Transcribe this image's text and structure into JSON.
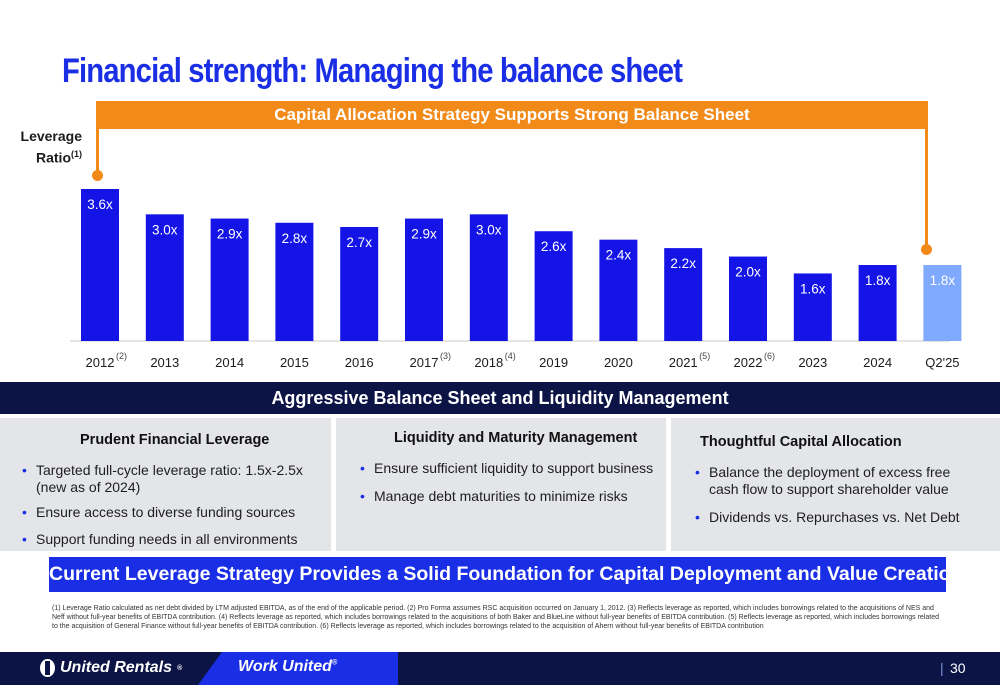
{
  "title": "Financial strength: Managing the balance sheet",
  "capital_banner": "Capital Allocation Strategy Supports Strong Balance Sheet",
  "leverage_label": {
    "line1": "Leverage",
    "line2": "Ratio",
    "sup": "(1)"
  },
  "chart_data": {
    "type": "bar",
    "categories": [
      "2012",
      "2013",
      "2014",
      "2015",
      "2016",
      "2017",
      "2018",
      "2019",
      "2020",
      "2021",
      "2022",
      "2023",
      "2024",
      "Q2'25"
    ],
    "category_footnotes": [
      "(2)",
      "",
      "",
      "",
      "",
      "(3)",
      "(4)",
      "",
      "",
      "(5)",
      "(6)",
      "",
      "",
      ""
    ],
    "values": [
      3.6,
      3.0,
      2.9,
      2.8,
      2.7,
      2.9,
      3.0,
      2.6,
      2.4,
      2.2,
      2.0,
      1.6,
      1.8,
      1.8
    ],
    "value_labels": [
      "3.6x",
      "3.0x",
      "2.9x",
      "2.8x",
      "2.7x",
      "2.9x",
      "3.0x",
      "2.6x",
      "2.4x",
      "2.2x",
      "2.0x",
      "1.6x",
      "1.8x",
      "1.8x"
    ],
    "highlight_index": 13,
    "ylim": [
      0,
      3.6
    ],
    "grid": false,
    "colors": {
      "bar": "#1414e6",
      "highlight": "#7faaff",
      "label_in_bar": "#ffffff"
    }
  },
  "aggressive_banner": "Aggressive Balance Sheet and Liquidity Management",
  "panels": [
    {
      "heading": "Prudent Financial Leverage",
      "bullets": [
        "Targeted full-cycle leverage ratio: 1.5x-2.5x (new as of 2024)",
        "Ensure access to diverse funding sources",
        "Support funding needs in all environments"
      ]
    },
    {
      "heading": "Liquidity and Maturity Management",
      "bullets": [
        "Ensure sufficient liquidity to support business",
        "Manage debt maturities to minimize risks"
      ]
    },
    {
      "heading": "Thoughtful Capital Allocation",
      "bullets": [
        "Balance the deployment of excess free cash flow to support shareholder value",
        "Dividends vs. Repurchases vs. Net Debt"
      ]
    }
  ],
  "strategy_banner": "Current Leverage Strategy Provides a Solid Foundation for Capital Deployment and Value Creation",
  "footnotes": "(1) Leverage Ratio calculated as net debt divided by LTM adjusted EBITDA, as of the end of the applicable period. (2) Pro Forma assumes RSC acquisition occurred on January 1, 2012. (3) Reflects leverage as reported, which includes borrowings related to the acquisitions of NES and Neff without full-year benefits of EBITDA contribution. (4) Reflects leverage as reported, which includes borrowings related to the acquisitions of both Baker and BlueLine without full-year benefits of EBITDA contribution. (5) Reflects leverage as reported, which includes borrowings related to the acquisition of General Finance without full-year benefits of EBITDA contribution. (6) Reflects leverage as reported, which includes borrowings related to the acquisition of Ahern without full-year benefits of EBITDA contribution",
  "footer": {
    "logo_text": "United Rentals",
    "logo_reg": "®",
    "tagline": "Work United",
    "tagline_reg": "®",
    "page_number": "30",
    "separator": "|"
  },
  "colors": {
    "title": "#1a2ee6",
    "accent_orange": "#f28a1a",
    "navy": "#0c1446",
    "panel_bg": "#e4e5e9"
  }
}
